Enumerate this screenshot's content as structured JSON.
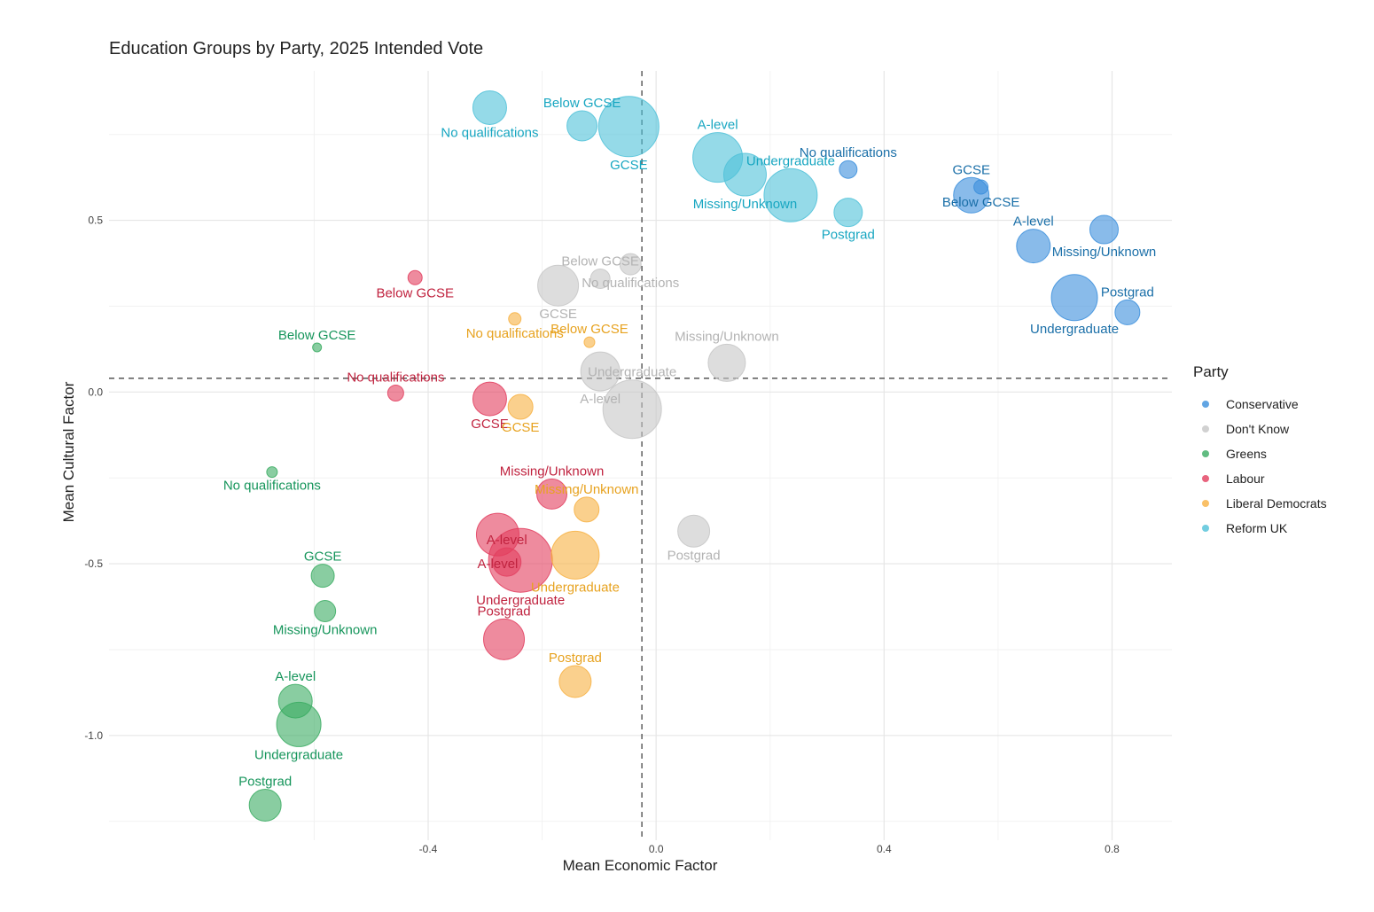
{
  "chart_data": {
    "type": "scatter",
    "title": "Education Groups by Party, 2025 Intended Vote",
    "xlabel": "Mean Economic Factor",
    "ylabel": "Mean Cultural Factor",
    "xlim": [
      -0.96,
      0.905
    ],
    "ylim": [
      -1.305,
      0.935
    ],
    "xticks": [
      -0.4,
      0.0,
      0.4,
      0.8
    ],
    "xtick_labels": [
      "-0.4",
      "0.0",
      "0.4",
      "0.8"
    ],
    "yticks": [
      -1.0,
      -0.5,
      0.0,
      0.5
    ],
    "ytick_labels": [
      "-1.0",
      "-0.5",
      "0.0",
      "0.5"
    ],
    "grid": true,
    "vline_x": -0.025,
    "hline_y": 0.04,
    "legend_title": "Party",
    "legend_position": "right",
    "series": [
      {
        "name": "Conservative",
        "color": "#3a8edc",
        "label_color": "#1a6fa8",
        "points": [
          {
            "label": "No qualifications",
            "x": 0.337,
            "y": 0.648,
            "size": 10
          },
          {
            "label": "Below GCSE",
            "x": 0.57,
            "y": 0.597,
            "size": 8
          },
          {
            "label": "GCSE",
            "x": 0.553,
            "y": 0.573,
            "size": 20
          },
          {
            "label": "Missing/Unknown",
            "x": 0.786,
            "y": 0.473,
            "size": 16
          },
          {
            "label": "A-level",
            "x": 0.662,
            "y": 0.425,
            "size": 19
          },
          {
            "label": "Undergraduate",
            "x": 0.734,
            "y": 0.275,
            "size": 26
          },
          {
            "label": "Postgrad",
            "x": 0.827,
            "y": 0.232,
            "size": 14
          }
        ]
      },
      {
        "name": "Don't Know",
        "color": "#c6c6c6",
        "label_color": "#b3b3b3",
        "points": [
          {
            "label": "No qualifications",
            "x": -0.045,
            "y": 0.372,
            "size": 12
          },
          {
            "label": "Below GCSE",
            "x": -0.098,
            "y": 0.33,
            "size": 11
          },
          {
            "label": "GCSE",
            "x": -0.172,
            "y": 0.31,
            "size": 23
          },
          {
            "label": "Missing/Unknown",
            "x": 0.124,
            "y": 0.085,
            "size": 21
          },
          {
            "label": "A-level",
            "x": -0.098,
            "y": 0.06,
            "size": 22
          },
          {
            "label": "Undergraduate",
            "x": -0.042,
            "y": -0.05,
            "size": 33
          },
          {
            "label": "Postgrad",
            "x": 0.066,
            "y": -0.405,
            "size": 18
          }
        ]
      },
      {
        "name": "Greens",
        "color": "#3aab62",
        "label_color": "#16955b",
        "points": [
          {
            "label": "Below GCSE",
            "x": -0.595,
            "y": 0.13,
            "size": 5
          },
          {
            "label": "No qualifications",
            "x": -0.674,
            "y": -0.233,
            "size": 6
          },
          {
            "label": "GCSE",
            "x": -0.585,
            "y": -0.535,
            "size": 13
          },
          {
            "label": "Missing/Unknown",
            "x": -0.581,
            "y": -0.638,
            "size": 12
          },
          {
            "label": "A-level",
            "x": -0.633,
            "y": -0.9,
            "size": 19
          },
          {
            "label": "Undergraduate",
            "x": -0.627,
            "y": -0.968,
            "size": 25
          },
          {
            "label": "Postgrad",
            "x": -0.686,
            "y": -1.203,
            "size": 18
          }
        ]
      },
      {
        "name": "Labour",
        "color": "#e23d5e",
        "label_color": "#c0233f",
        "points": [
          {
            "label": "Below GCSE",
            "x": -0.423,
            "y": 0.333,
            "size": 8
          },
          {
            "label": "No qualifications",
            "x": -0.457,
            "y": -0.003,
            "size": 9
          },
          {
            "label": "GCSE",
            "x": -0.292,
            "y": -0.02,
            "size": 19
          },
          {
            "label": "Missing/Unknown",
            "x": -0.183,
            "y": -0.297,
            "size": 17
          },
          {
            "label": "A-level",
            "x": -0.278,
            "y": -0.415,
            "size": 24
          },
          {
            "label": "A-level",
            "x": -0.262,
            "y": -0.495,
            "size": 16
          },
          {
            "label": "Undergraduate",
            "x": -0.238,
            "y": -0.49,
            "size": 36
          },
          {
            "label": "Postgrad",
            "x": -0.267,
            "y": -0.72,
            "size": 23
          }
        ]
      },
      {
        "name": "Liberal Democrats",
        "color": "#f7b041",
        "label_color": "#e7a21f",
        "points": [
          {
            "label": "No qualifications",
            "x": -0.248,
            "y": 0.213,
            "size": 7
          },
          {
            "label": "Below GCSE",
            "x": -0.117,
            "y": 0.145,
            "size": 6
          },
          {
            "label": "GCSE",
            "x": -0.238,
            "y": -0.043,
            "size": 14
          },
          {
            "label": "Missing/Unknown",
            "x": -0.122,
            "y": -0.342,
            "size": 14
          },
          {
            "label": "Undergraduate",
            "x": -0.142,
            "y": -0.475,
            "size": 27
          },
          {
            "label": "Postgrad",
            "x": -0.142,
            "y": -0.843,
            "size": 18
          }
        ]
      },
      {
        "name": "Reform UK",
        "color": "#4fc1d8",
        "label_color": "#17a6c1",
        "points": [
          {
            "label": "No qualifications",
            "x": -0.292,
            "y": 0.828,
            "size": 19
          },
          {
            "label": "Below GCSE",
            "x": -0.13,
            "y": 0.775,
            "size": 17
          },
          {
            "label": "GCSE",
            "x": -0.048,
            "y": 0.773,
            "size": 34
          },
          {
            "label": "A-level",
            "x": 0.108,
            "y": 0.683,
            "size": 28
          },
          {
            "label": "Missing/Unknown",
            "x": 0.156,
            "y": 0.633,
            "size": 24
          },
          {
            "label": "Undergraduate",
            "x": 0.236,
            "y": 0.573,
            "size": 30
          },
          {
            "label": "Postgrad",
            "x": 0.337,
            "y": 0.523,
            "size": 16
          }
        ]
      }
    ]
  }
}
